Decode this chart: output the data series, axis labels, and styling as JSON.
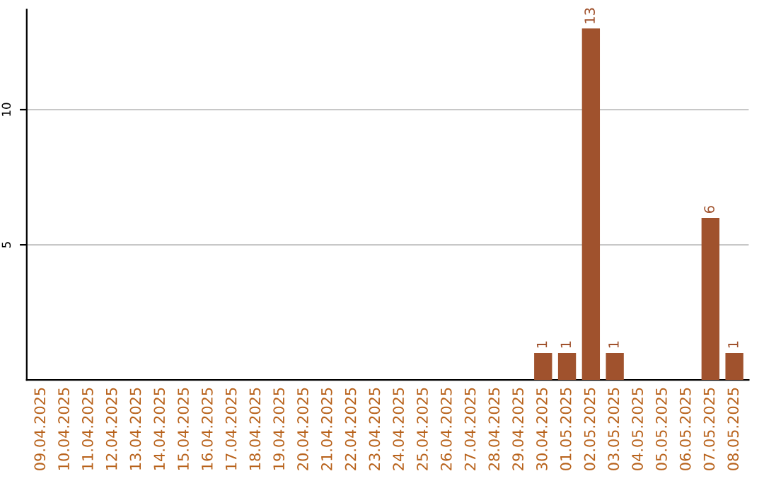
{
  "chart_data": {
    "type": "bar",
    "categories": [
      "09.04.2025",
      "10.04.2025",
      "11.04.2025",
      "12.04.2025",
      "13.04.2025",
      "14.04.2025",
      "15.04.2025",
      "16.04.2025",
      "17.04.2025",
      "18.04.2025",
      "19.04.2025",
      "20.04.2025",
      "21.04.2025",
      "22.04.2025",
      "23.04.2025",
      "24.04.2025",
      "25.04.2025",
      "26.04.2025",
      "27.04.2025",
      "28.04.2025",
      "29.04.2025",
      "30.04.2025",
      "01.05.2025",
      "02.05.2025",
      "03.05.2025",
      "04.05.2025",
      "05.05.2025",
      "06.05.2025",
      "07.05.2025",
      "08.05.2025"
    ],
    "values": [
      0,
      0,
      0,
      0,
      0,
      0,
      0,
      0,
      0,
      0,
      0,
      0,
      0,
      0,
      0,
      0,
      0,
      0,
      0,
      0,
      0,
      1,
      1,
      13,
      1,
      0,
      0,
      0,
      6,
      1
    ],
    "value_labels": [
      null,
      null,
      null,
      null,
      null,
      null,
      null,
      null,
      null,
      null,
      null,
      null,
      null,
      null,
      null,
      null,
      null,
      null,
      null,
      null,
      null,
      "1",
      "1",
      "13",
      "1",
      null,
      null,
      null,
      "6",
      "1"
    ],
    "color": "#a0522d",
    "ylim": [
      0,
      13.7
    ],
    "yticks": [
      5,
      10
    ],
    "grid": "y"
  }
}
